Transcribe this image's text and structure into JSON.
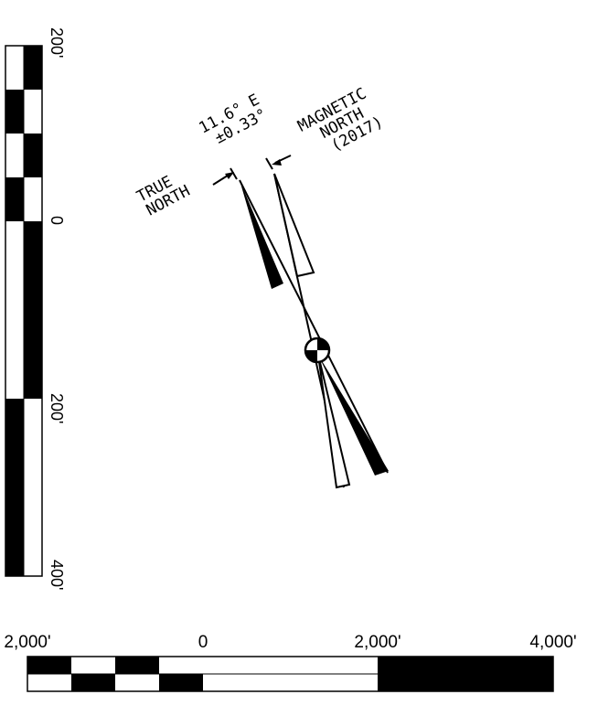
{
  "north_arrow": {
    "true_north": {
      "line1": "TRUE",
      "line2": "NORTH"
    },
    "declination": {
      "angle": "11.6° E",
      "uncertainty": "±0.33°"
    },
    "magnetic_north": {
      "line1": "MAGNETIC",
      "line2": "NORTH",
      "line3": "(2017)"
    }
  },
  "vertical_scale": {
    "labels": [
      "200'",
      "0",
      "200'",
      "400'"
    ]
  },
  "horizontal_scale": {
    "labels": [
      "2,000'",
      "0",
      "2,000'",
      "4,000'"
    ]
  },
  "colors": {
    "ink": "#000000",
    "paper": "#ffffff"
  }
}
